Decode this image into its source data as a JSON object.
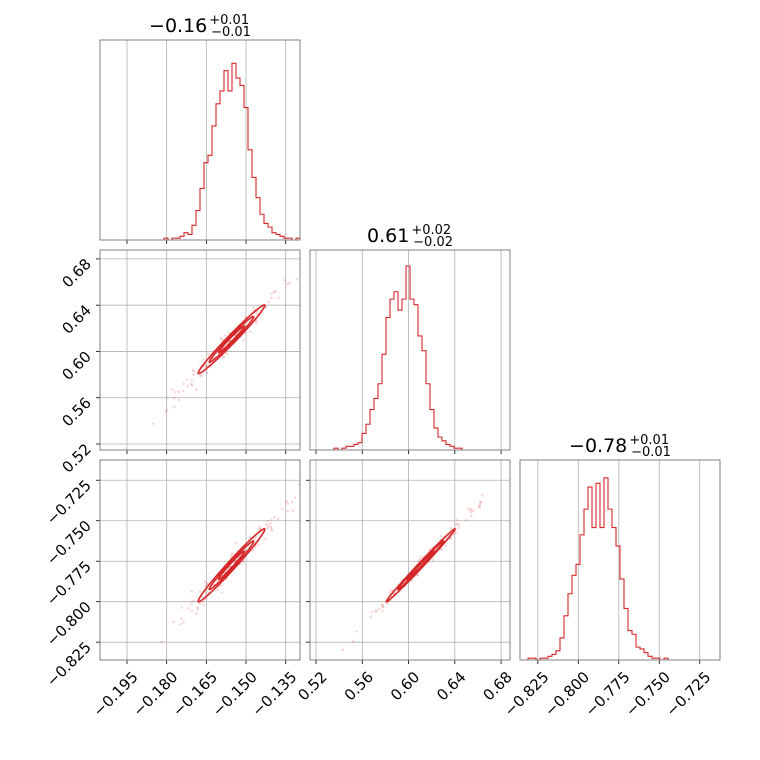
{
  "chart_data": {
    "type": "corner",
    "grid": true,
    "line_color": "#d62728",
    "parameters": [
      {
        "title": {
          "value": "−0.16",
          "plus": "+0.01",
          "minus": "−0.01"
        },
        "range": [
          -0.2052,
          -0.1296
        ],
        "ticks": [
          -0.195,
          -0.18,
          -0.165,
          -0.15,
          -0.135
        ],
        "tick_labels": [
          "−0.195",
          "−0.180",
          "−0.165",
          "−0.150",
          "−0.135"
        ],
        "hist": [
          0,
          0,
          0,
          0,
          0,
          0,
          0,
          0,
          0,
          0,
          0,
          0,
          0,
          0,
          0,
          0,
          0.01,
          0,
          0.01,
          0.01,
          0.02,
          0.04,
          0.03,
          0.08,
          0.16,
          0.28,
          0.42,
          0.46,
          0.62,
          0.74,
          0.81,
          0.92,
          0.81,
          0.96,
          0.88,
          0.84,
          0.72,
          0.49,
          0.34,
          0.23,
          0.14,
          0.09,
          0.07,
          0.04,
          0.03,
          0.02,
          0.01,
          0.01,
          0,
          0.01
        ]
      },
      {
        "title": {
          "value": "0.61",
          "plus": "+0.02",
          "minus": "−0.02"
        },
        "range": [
          0.5148,
          0.6877
        ],
        "ticks": [
          0.52,
          0.56,
          0.6,
          0.64,
          0.68
        ],
        "tick_labels": [
          "0.52",
          "0.56",
          "0.60",
          "0.64",
          "0.68"
        ],
        "hist": [
          0,
          0,
          0,
          0,
          0,
          0,
          0.01,
          0,
          0.01,
          0.02,
          0.02,
          0.03,
          0.04,
          0.09,
          0.14,
          0.22,
          0.28,
          0.36,
          0.52,
          0.72,
          0.82,
          0.86,
          0.76,
          0.82,
          1.0,
          0.82,
          0.79,
          0.62,
          0.54,
          0.36,
          0.22,
          0.12,
          0.07,
          0.05,
          0.03,
          0.02,
          0.01,
          0.01,
          0,
          0,
          0,
          0,
          0,
          0,
          0,
          0,
          0,
          0,
          0,
          0
        ]
      },
      {
        "title": {
          "value": "−0.78",
          "plus": "+0.01",
          "minus": "−0.01"
        },
        "range": [
          -0.836,
          -0.7125
        ],
        "ticks": [
          -0.825,
          -0.8,
          -0.775,
          -0.75,
          -0.725
        ],
        "tick_labels": [
          "−0.825",
          "−0.800",
          "−0.775",
          "−0.750",
          "−0.725"
        ],
        "hist": [
          0,
          0,
          0.01,
          0.01,
          0,
          0.01,
          0.01,
          0.02,
          0.03,
          0.05,
          0.12,
          0.24,
          0.36,
          0.46,
          0.52,
          0.68,
          0.82,
          0.94,
          0.72,
          0.96,
          0.72,
          0.99,
          0.82,
          0.72,
          0.62,
          0.44,
          0.28,
          0.16,
          0.14,
          0.07,
          0.06,
          0.04,
          0.02,
          0.01,
          0.01,
          0,
          0.01,
          0,
          0,
          0,
          0,
          0,
          0,
          0,
          0,
          0,
          0,
          0,
          0,
          0
        ]
      }
    ],
    "pairs": [
      {
        "x_param": 0,
        "y_param": 1,
        "mean": [
          -0.1555,
          0.6105
        ],
        "sd": [
          0.007,
          0.0165
        ],
        "corr": 0.985
      },
      {
        "x_param": 0,
        "y_param": 2,
        "mean": [
          -0.1555,
          -0.7775
        ],
        "sd": [
          0.007,
          0.0125
        ],
        "corr": 0.985
      },
      {
        "x_param": 1,
        "y_param": 2,
        "mean": [
          0.6105,
          -0.7775
        ],
        "sd": [
          0.0165,
          0.0125
        ],
        "corr": 0.995
      }
    ]
  }
}
